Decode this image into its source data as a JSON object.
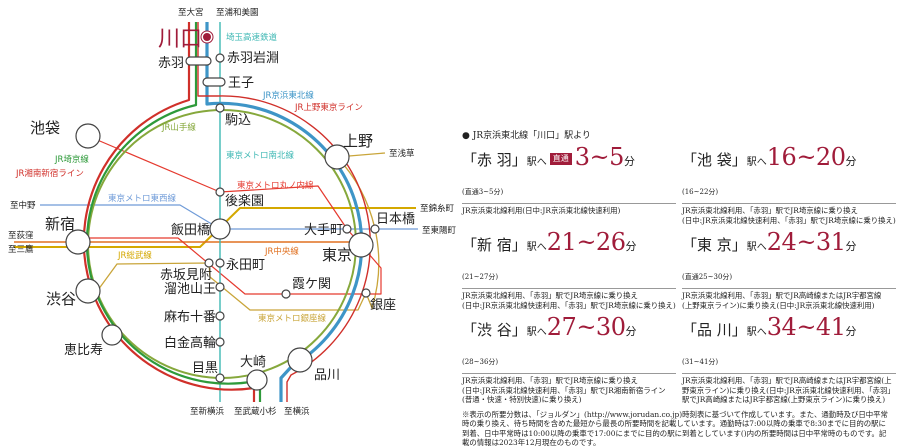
{
  "colors": {
    "accent": "#a01c3a",
    "yamanote": "#86a83c",
    "saikyo": "#2e9a3a",
    "shonan": "#d0302a",
    "keihin": "#3e95c7",
    "namboku": "#3fb8b4",
    "marunouchi": "#e53a2f",
    "tozai": "#6f9bd8",
    "chuo": "#e07020",
    "sobu": "#d4a800",
    "ginza": "#c9a53a"
  },
  "map": {
    "stations": {
      "kawaguchi": "川口",
      "akabane": "赤羽",
      "akabaneiwabuchi": "赤羽岩淵",
      "oji": "王子",
      "komagome": "駒込",
      "ikebukuro": "池袋",
      "ueno": "上野",
      "korakuen": "後楽園",
      "iidabashi": "飯田橋",
      "otemachi": "大手町",
      "nihonbashi": "日本橋",
      "shinjuku": "新宿",
      "tokyo": "東京",
      "nagatacho": "永田町",
      "akasakamitsuke": "赤坂見附",
      "tameikesanno": "溜池山王",
      "kasumigaseki": "霞ケ関",
      "ginza": "銀座",
      "shibuya": "渋谷",
      "azabujuban": "麻布十番",
      "shirokanetakanawa": "白金高輪",
      "ebisu": "恵比寿",
      "meguro": "目黒",
      "osaki": "大崎",
      "shinagawa": "品川"
    },
    "lines": {
      "saitama": "埼玉高速鉄道",
      "keihin": "JR京浜東北線",
      "uenotokyo": "JR上野東京ライン",
      "yamanote": "JR山手線",
      "namboku": "東京メトロ南北線",
      "marunouchi": "東京メトロ丸ノ内線",
      "tozai": "東京メトロ東西線",
      "saikyo": "JR埼京線",
      "shonan": "JR湘南新宿ライン",
      "chuo": "JR中央線",
      "sobu": "JR総武線",
      "ginza": "東京メトロ銀座線"
    },
    "directions": {
      "omiya": "至大宮",
      "urawamisono": "至浦和美園",
      "asakusa": "至浅草",
      "nakano": "至中野",
      "ogikubo": "至荻窪",
      "mitaka": "至三鷹",
      "kinshicho": "至錦糸町",
      "toyocho": "至東陽町",
      "shinyokohama": "至新横浜",
      "musashikosugi": "至武蔵小杉",
      "yokohama": "至横浜"
    }
  },
  "panel": {
    "header": "● JR京浜東北線「川口」駅より",
    "eki_suffix": "駅へ",
    "fun": "分",
    "routes": [
      {
        "name": "「赤 羽」",
        "badge": "直通",
        "time": "3~5",
        "sub": "(直通3~5分)",
        "desc": [
          "JR京浜東北線利用(日中:JR京浜東北線快速利用)"
        ]
      },
      {
        "name": "「池 袋」",
        "time": "16~20",
        "sub": "(16~22分)",
        "desc": [
          "JR京浜東北線利用、「赤羽」駅でJR埼京線に乗り換え",
          "(日中:JR京浜東北線快速利用、「赤羽」駅でJR埼京線に乗り換え)"
        ]
      },
      {
        "name": "「新 宿」",
        "time": "21~26",
        "sub": "(21~27分)",
        "desc": [
          "JR京浜東北線利用、「赤羽」駅でJR埼京線に乗り換え",
          "(日中:JR京浜東北線快速利用、「赤羽」駅でJR埼京線に乗り換え)"
        ]
      },
      {
        "name": "「東 京」",
        "time": "24~31",
        "sub": "(直通25~30分)",
        "desc": [
          "JR京浜東北線利用、「赤羽」駅でJR高崎線またはJR宇都宮線",
          "(上野東京ライン)に乗り換え(日中:JR京浜東北線快速利用)"
        ]
      },
      {
        "name": "「渋 谷」",
        "time": "27~30",
        "sub": "(28~36分)",
        "desc": [
          "JR京浜東北線利用、「赤羽」駅でJR埼京線に乗り換え",
          "(日中:JR京浜東北線快速利用、「赤羽」駅でJR湘南新宿ライン",
          "(普通・快速・特別快速)に乗り換え)"
        ]
      },
      {
        "name": "「品 川」",
        "time": "34~41",
        "sub": "(31~41分)",
        "desc": [
          "JR京浜東北線利用、「赤羽」駅でJR高崎線またはJR宇都宮線(上",
          "野東京ライン)に乗り換え(日中:JR京浜東北線快速利用、「赤羽」",
          "駅でJR高崎線またはJR宇都宮線(上野東京ライン)に乗り換え)"
        ]
      }
    ],
    "note": "※表示の所要分数は、「ジョルダン」(http://www.jorudan.co.jp)時刻表に基づいて作成しています。また、通勤時及び日中平常時の乗り換え、待ち時間を含めた最短から最長の所要時間を記載しています。通勤時は7:00以降の乗車で8:30までに目的の駅に到着、日中平常時は10:00以降の乗車で17:00にまでに目的の駅に到着としています()内の所要時間は日中平常時のものです。記載の情報は2023年12月現在のものです。"
  }
}
